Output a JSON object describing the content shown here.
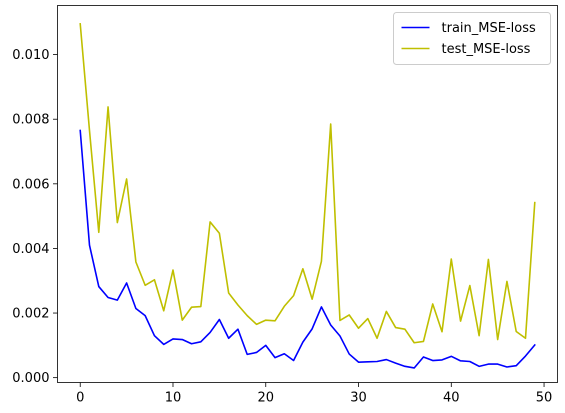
{
  "chart_data": {
    "type": "line",
    "title": "",
    "xlabel": "",
    "ylabel": "",
    "xlim": [
      -2.45,
      51.45
    ],
    "ylim": [
      -0.00015,
      0.01152
    ],
    "xticks": [
      0,
      10,
      20,
      30,
      40,
      50
    ],
    "xtick_labels": [
      "0",
      "10",
      "20",
      "30",
      "40",
      "50"
    ],
    "yticks": [
      0.0,
      0.002,
      0.004,
      0.006,
      0.008,
      0.01
    ],
    "ytick_labels": [
      "0.000",
      "0.002",
      "0.004",
      "0.006",
      "0.008",
      "0.010"
    ],
    "grid": false,
    "legend_position": "top-right",
    "x": [
      0,
      1,
      2,
      3,
      4,
      5,
      6,
      7,
      8,
      9,
      10,
      11,
      12,
      13,
      14,
      15,
      16,
      17,
      18,
      19,
      20,
      21,
      22,
      23,
      24,
      25,
      26,
      27,
      28,
      29,
      30,
      31,
      32,
      33,
      34,
      35,
      36,
      37,
      38,
      39,
      40,
      41,
      42,
      43,
      44,
      45,
      46,
      47,
      48,
      49
    ],
    "series": [
      {
        "name": "train_MSE-loss",
        "color": "#0000ff",
        "values": [
          0.00765,
          0.0041,
          0.00282,
          0.00248,
          0.0024,
          0.00293,
          0.00214,
          0.00192,
          0.0013,
          0.00103,
          0.0012,
          0.00118,
          0.00105,
          0.00111,
          0.0014,
          0.0018,
          0.00122,
          0.0015,
          0.00072,
          0.00078,
          0.001,
          0.00062,
          0.00074,
          0.00053,
          0.0011,
          0.00151,
          0.00219,
          0.00163,
          0.00129,
          0.00073,
          0.00048,
          0.00049,
          0.0005,
          0.00056,
          0.00045,
          0.00035,
          0.0003,
          0.00064,
          0.00053,
          0.00055,
          0.00066,
          0.00052,
          0.0005,
          0.00035,
          0.00042,
          0.00042,
          0.00033,
          0.00037,
          0.00067,
          0.00101
        ]
      },
      {
        "name": "test_MSE-loss",
        "color": "#bfbf00",
        "values": [
          0.01095,
          0.00765,
          0.0045,
          0.00838,
          0.0048,
          0.00615,
          0.00358,
          0.00286,
          0.00303,
          0.00207,
          0.00333,
          0.00178,
          0.00218,
          0.0022,
          0.00482,
          0.00447,
          0.00262,
          0.00225,
          0.00192,
          0.00165,
          0.00178,
          0.00176,
          0.00221,
          0.00254,
          0.00337,
          0.00243,
          0.0036,
          0.00785,
          0.00177,
          0.00194,
          0.00153,
          0.00183,
          0.00122,
          0.00205,
          0.00155,
          0.0015,
          0.00108,
          0.00112,
          0.00228,
          0.00142,
          0.00367,
          0.00175,
          0.00285,
          0.0013,
          0.00366,
          0.00118,
          0.00298,
          0.00143,
          0.00122,
          0.00542
        ]
      }
    ]
  }
}
